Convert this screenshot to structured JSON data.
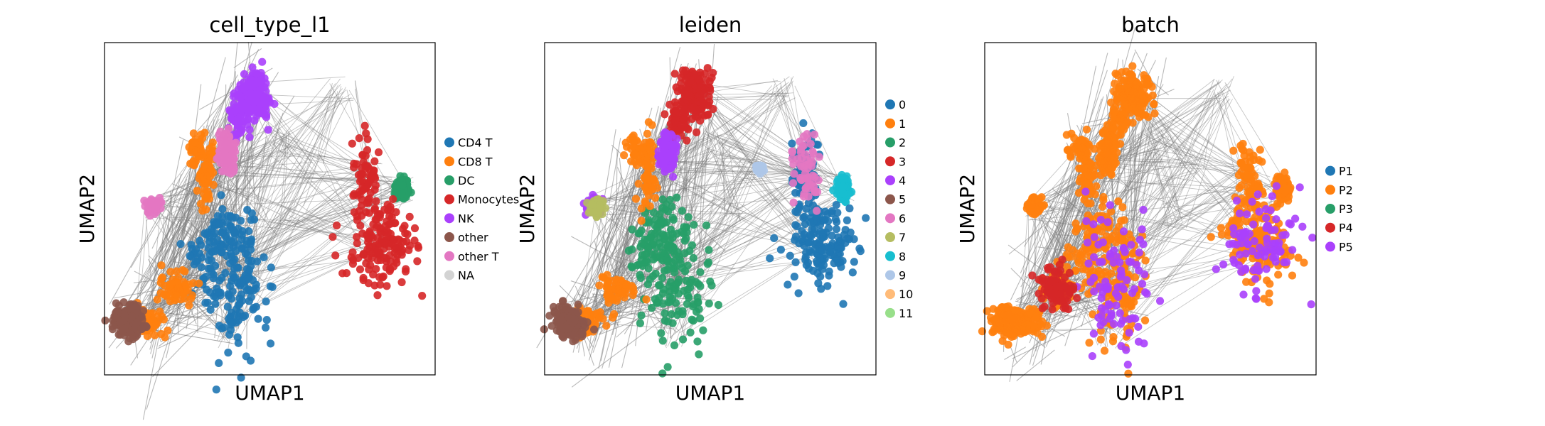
{
  "chart_data": [
    {
      "type": "scatter",
      "title": "cell_type_l1",
      "xlabel": "UMAP1",
      "ylabel": "UMAP2",
      "grid": false,
      "legend": "right",
      "series": [
        {
          "name": "CD4 T",
          "color": "#1f77b4"
        },
        {
          "name": "CD8 T",
          "color": "#ff7f0e"
        },
        {
          "name": "DC",
          "color": "#279e68"
        },
        {
          "name": "Monocytes",
          "color": "#d62728"
        },
        {
          "name": "NK",
          "color": "#aa40fc"
        },
        {
          "name": "other",
          "color": "#8c564b"
        },
        {
          "name": "other T",
          "color": "#e377c2"
        },
        {
          "name": "NA",
          "color": "#d3d3d3"
        }
      ]
    },
    {
      "type": "scatter",
      "title": "leiden",
      "xlabel": "UMAP1",
      "ylabel": "UMAP2",
      "grid": false,
      "legend": "right",
      "series": [
        {
          "name": "0",
          "color": "#1f77b4"
        },
        {
          "name": "1",
          "color": "#ff7f0e"
        },
        {
          "name": "2",
          "color": "#279e68"
        },
        {
          "name": "3",
          "color": "#d62728"
        },
        {
          "name": "4",
          "color": "#aa40fc"
        },
        {
          "name": "5",
          "color": "#8c564b"
        },
        {
          "name": "6",
          "color": "#e377c2"
        },
        {
          "name": "7",
          "color": "#b5bd61"
        },
        {
          "name": "8",
          "color": "#17becf"
        },
        {
          "name": "9",
          "color": "#aec7e8"
        },
        {
          "name": "10",
          "color": "#ffbb78"
        },
        {
          "name": "11",
          "color": "#98df8a"
        }
      ]
    },
    {
      "type": "scatter",
      "title": "batch",
      "xlabel": "UMAP1",
      "ylabel": "UMAP2",
      "grid": false,
      "legend": "right",
      "series": [
        {
          "name": "P1",
          "color": "#1f77b4"
        },
        {
          "name": "P2",
          "color": "#ff7f0e"
        },
        {
          "name": "P3",
          "color": "#279e68"
        },
        {
          "name": "P4",
          "color": "#d62728"
        },
        {
          "name": "P5",
          "color": "#aa40fc"
        }
      ]
    }
  ]
}
